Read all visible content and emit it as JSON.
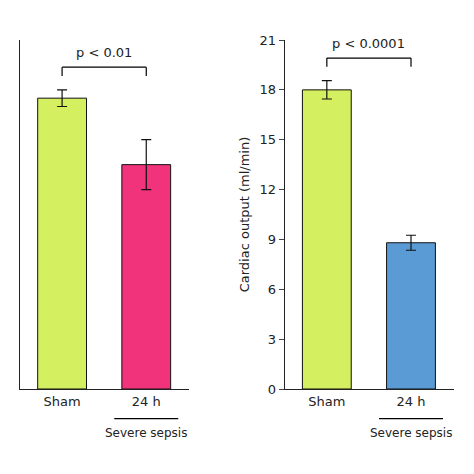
{
  "chart_data": [
    {
      "type": "bar",
      "categories": [
        "Sham",
        "24 h"
      ],
      "values": [
        17.5,
        13.5
      ],
      "errors": [
        0.5,
        1.5
      ],
      "colors": [
        "#d4ef5f",
        "#f0337a"
      ],
      "ylim": [
        0,
        21
      ],
      "tick_labels": "x",
      "grid": false,
      "annotations": [
        {
          "text": "p < 0.01",
          "between": [
            "Sham",
            "24 h"
          ]
        },
        {
          "text": "Severe sepsis",
          "under": "24 h"
        }
      ]
    },
    {
      "type": "bar",
      "categories": [
        "Sham",
        "24 h"
      ],
      "values": [
        18.0,
        8.8
      ],
      "errors": [
        0.55,
        0.45
      ],
      "colors": [
        "#d4ef5f",
        "#5b9bd5"
      ],
      "ylim": [
        0,
        21
      ],
      "yticks": [
        0,
        3,
        6,
        9,
        12,
        15,
        18,
        21
      ],
      "ylabel": "Cardiac output (ml/min)",
      "grid": false,
      "annotations": [
        {
          "text": "p < 0.0001",
          "between": [
            "Sham",
            "24 h"
          ]
        },
        {
          "text": "Severe sepsis",
          "under": "24 h"
        }
      ]
    }
  ]
}
